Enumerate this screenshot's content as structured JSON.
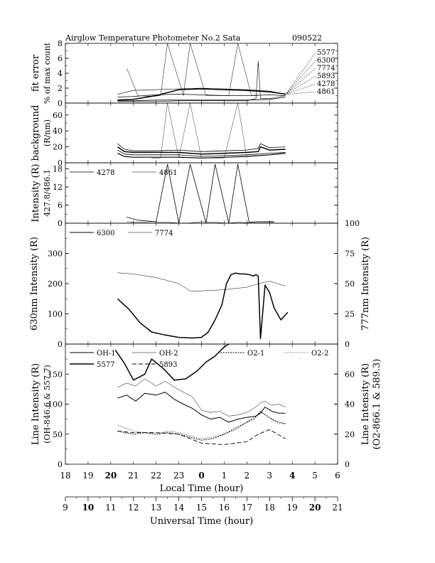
{
  "header": {
    "title": "Airglow Temperature Photometer No.2  Sata",
    "date": "090522"
  },
  "chart_data": [
    {
      "type": "line",
      "panel": "fit",
      "ylabel": [
        "fit error",
        "% of max count"
      ],
      "ylim": [
        0,
        8
      ],
      "yticks": [
        0,
        2,
        4,
        6,
        8
      ],
      "wavelength_labels": [
        "5577",
        "6300",
        "7774",
        "5893",
        "4278",
        "4861"
      ],
      "series": [
        {
          "name": "5577",
          "x": [
            11.3,
            12,
            13,
            14,
            15,
            16,
            17,
            18,
            18.7
          ],
          "y": [
            0.4,
            0.5,
            1.0,
            1.8,
            1.9,
            1.8,
            1.7,
            1.5,
            1.2
          ]
        },
        {
          "name": "6300",
          "x": [
            11.3,
            12,
            13,
            14,
            15,
            16,
            17,
            18,
            18.7
          ],
          "y": [
            1.2,
            1.7,
            1.8,
            1.9,
            2.0,
            1.9,
            1.8,
            1.6,
            1.2
          ]
        },
        {
          "name": "7774",
          "x": [
            11.3,
            12,
            13,
            14,
            15,
            16,
            17,
            18,
            18.7
          ],
          "y": [
            0.8,
            0.9,
            1.1,
            1.2,
            1.1,
            1.0,
            1.0,
            1.1,
            1.0
          ]
        },
        {
          "name": "5893",
          "x": [
            11.3,
            12,
            13,
            14,
            15,
            16,
            17,
            18,
            18.7
          ],
          "y": [
            0.3,
            0.3,
            0.4,
            0.4,
            0.4,
            0.4,
            0.4,
            0.5,
            0.8
          ]
        },
        {
          "name": "4278",
          "x": [
            11.7,
            12.2,
            12.8,
            13.2,
            13.5,
            14.2,
            14.5,
            15.2,
            15.6,
            16.2,
            16.6,
            17.2,
            17.5
          ],
          "y": [
            4.7,
            1.0,
            0.9,
            1.0,
            8.4,
            1.0,
            8.4,
            1.0,
            1.0,
            1.0,
            8.4,
            1.0,
            1.0
          ]
        },
        {
          "name": "4861",
          "x": [
            11.3,
            12,
            13,
            14,
            15,
            16,
            17,
            17.4,
            17.5,
            17.6,
            18,
            18.7
          ],
          "y": [
            0.2,
            0.2,
            0.2,
            0.3,
            0.3,
            0.3,
            0.3,
            0.6,
            5.6,
            0.6,
            0.6,
            1.0
          ]
        }
      ]
    },
    {
      "type": "line",
      "panel": "background",
      "ylabel": [
        "background",
        "(R/nm)"
      ],
      "ylim": [
        0,
        75
      ],
      "yticks": [
        0,
        20,
        40,
        60
      ],
      "series": [
        {
          "name": "bg1",
          "x": [
            11.3,
            11.6,
            12,
            13,
            14,
            15,
            16,
            17,
            17.5,
            17.6,
            18,
            18.7
          ],
          "y": [
            24,
            17,
            15,
            15,
            16,
            14,
            15,
            16,
            18,
            24,
            19,
            20
          ]
        },
        {
          "name": "bg2",
          "x": [
            11.3,
            11.6,
            12,
            13,
            14,
            15,
            16,
            17,
            17.5,
            17.6,
            18,
            18.7
          ],
          "y": [
            20,
            14,
            13,
            13,
            13,
            11,
            12,
            13,
            14,
            20,
            16,
            17
          ]
        },
        {
          "name": "bg3",
          "x": [
            11.3,
            11.6,
            12,
            13,
            14,
            15,
            16,
            17,
            18,
            18.7
          ],
          "y": [
            16,
            11,
            10,
            10,
            10,
            8,
            9,
            10,
            12,
            13
          ]
        },
        {
          "name": "bg4",
          "x": [
            11.3,
            11.6,
            12,
            13,
            14,
            15,
            16,
            17,
            18,
            18.7
          ],
          "y": [
            12,
            8,
            7,
            7,
            7,
            6,
            7,
            8,
            10,
            12
          ]
        },
        {
          "name": "bg-spikes",
          "x": [
            12.8,
            13.2,
            13.5,
            14.0,
            14.5,
            15.0,
            15.6,
            16.0,
            16.6,
            17.0
          ],
          "y": [
            6,
            6,
            75,
            6,
            75,
            6,
            6,
            6,
            75,
            6
          ]
        }
      ]
    },
    {
      "type": "line",
      "panel": "blue",
      "ylabel": [
        "Intensity (R)",
        "427.8/486.1"
      ],
      "ylim": [
        0,
        20
      ],
      "yticks": [
        0,
        6,
        12,
        18
      ],
      "series": [
        {
          "name": "4278",
          "x": [
            11.7,
            12.2,
            13,
            13.5,
            14.0,
            14.5,
            15.2,
            15.6,
            16.2,
            16.6,
            17.1,
            17.5,
            18.2
          ],
          "y": [
            2.0,
            1.0,
            0.5,
            19.5,
            0.0,
            19.5,
            0.1,
            19.5,
            0.0,
            19.5,
            0.3,
            0.5,
            0.5
          ]
        },
        {
          "name": "4861",
          "x": [
            11.7,
            12.2,
            12.8,
            13.5,
            14.1,
            14.5,
            15.0,
            15.6,
            16.1,
            16.6,
            17.0,
            17.5,
            18.2
          ],
          "y": [
            0.5,
            0.3,
            0.5,
            0.3,
            0.0,
            0.1,
            0.5,
            0.3,
            0.0,
            0.3,
            0.2,
            0.4,
            0.3
          ]
        }
      ]
    },
    {
      "type": "line",
      "panel": "red",
      "ylabel": "630nm Intensity (R)",
      "y2label": "777nm Intensity (R)",
      "ylim": [
        0,
        400
      ],
      "yticks": [
        0,
        100,
        200,
        300
      ],
      "y2lim": [
        0,
        100
      ],
      "y2ticks": [
        0,
        25,
        50,
        75,
        100
      ],
      "series": [
        {
          "name": "6300",
          "x": [
            11.3,
            11.8,
            12.3,
            12.8,
            13.4,
            14,
            14.6,
            15,
            15.3,
            15.6,
            15.9,
            16.1,
            16.3,
            16.5,
            16.7,
            16.9,
            17.1,
            17.3,
            17.4,
            17.5,
            17.6,
            17.8,
            18.0,
            18.2,
            18.5,
            18.8
          ],
          "y": [
            150,
            115,
            70,
            40,
            30,
            22,
            20,
            22,
            40,
            80,
            130,
            200,
            230,
            235,
            232,
            232,
            230,
            225,
            230,
            225,
            18,
            195,
            170,
            120,
            80,
            105
          ]
        },
        {
          "name": "7774",
          "x": [
            11.3,
            12,
            13,
            14,
            14.5,
            15,
            16,
            17,
            17.5,
            18,
            18.7
          ],
          "y": [
            59,
            58,
            55,
            50,
            44,
            44,
            45,
            47,
            50,
            52,
            48
          ]
        }
      ]
    },
    {
      "type": "line",
      "panel": "lines",
      "ylabel": [
        "Line Intensity (R)",
        "(OH-846.6 & 557.7)"
      ],
      "y2label": [
        "Line Intensity (R)",
        "(O2-866.1 & 589.3)"
      ],
      "ylim": [
        0,
        200
      ],
      "yticks": [
        0,
        50,
        100,
        150
      ],
      "y2lim": [
        0,
        80
      ],
      "y2ticks": [
        0,
        20,
        40,
        60
      ],
      "series": [
        {
          "name": "OH-1",
          "x": [
            11.3,
            11.7,
            12.1,
            12.5,
            13,
            13.4,
            13.8,
            14.2,
            14.6,
            15,
            15.4,
            15.8,
            16.2,
            16.6,
            17,
            17.4,
            17.6,
            17.8,
            18.1,
            18.4,
            18.7
          ],
          "y": [
            110,
            115,
            105,
            118,
            115,
            120,
            108,
            100,
            93,
            82,
            75,
            78,
            70,
            75,
            78,
            80,
            85,
            95,
            88,
            85,
            85
          ]
        },
        {
          "name": "OH-2",
          "x": [
            11.3,
            11.7,
            12.1,
            12.5,
            13,
            13.4,
            13.8,
            14.2,
            14.6,
            15,
            15.4,
            15.8,
            16.2,
            16.6,
            17,
            17.4,
            17.6,
            17.8,
            18.1,
            18.4,
            18.7
          ],
          "y": [
            128,
            135,
            130,
            142,
            130,
            138,
            128,
            120,
            112,
            90,
            86,
            88,
            80,
            82,
            86,
            95,
            102,
            105,
            98,
            100,
            95
          ]
        },
        {
          "name": "O2-1",
          "x": [
            11.3,
            12,
            12.5,
            13,
            13.5,
            14,
            14.5,
            15,
            15.5,
            16,
            16.5,
            17,
            17.3,
            17.6,
            17.8,
            18.1,
            18.4,
            18.7
          ],
          "y": [
            22,
            20,
            21,
            20,
            21,
            20,
            18,
            16,
            17,
            20,
            24,
            28,
            30,
            35,
            33,
            30,
            28,
            27
          ]
        },
        {
          "name": "O2-2",
          "x": [
            11.3,
            12,
            12.5,
            13,
            13.5,
            14,
            14.5,
            15,
            15.5,
            16,
            16.5,
            17,
            17.3,
            17.6,
            17.8,
            18.1,
            18.4,
            18.7
          ],
          "y": [
            26,
            22,
            21,
            20,
            22,
            21,
            19,
            17,
            18,
            20,
            23,
            28,
            31,
            35,
            33,
            30,
            27,
            27
          ]
        },
        {
          "name": "5577",
          "x": [
            11.2,
            11.6,
            12,
            12.5,
            12.8,
            13.3,
            13.8,
            14.3,
            14.8,
            15.2,
            15.6,
            16.0,
            16.2
          ],
          "y": [
            190,
            168,
            140,
            150,
            175,
            160,
            140,
            142,
            155,
            170,
            180,
            195,
            200
          ]
        },
        {
          "name": "5893",
          "x": [
            11.3,
            12,
            13,
            14,
            15,
            16,
            17,
            17.5,
            18,
            18.7
          ],
          "y": [
            22,
            21,
            21,
            20,
            14,
            13,
            15,
            20,
            23,
            17
          ]
        }
      ]
    }
  ],
  "axes": {
    "local_time": {
      "label": "Local Time (hour)",
      "ticks": [
        "18",
        "19",
        "20",
        "21",
        "22",
        "23",
        "0",
        "1",
        "2",
        "3",
        "4",
        "5",
        "6"
      ],
      "bold": [
        "20",
        "0",
        "4"
      ]
    },
    "universal_time": {
      "label": "Universal Time (hour)",
      "ticks": [
        "9",
        "10",
        "11",
        "12",
        "13",
        "14",
        "15",
        "16",
        "17",
        "18",
        "19",
        "20",
        "21"
      ],
      "bold": [
        "10",
        "20"
      ]
    }
  },
  "legends": {
    "blue": [
      "4278",
      "4861"
    ],
    "red": [
      "6300",
      "7774"
    ],
    "lines": [
      "OH-1",
      "OH-2",
      "O2-1",
      "O2-2",
      "5577",
      "5893"
    ]
  }
}
